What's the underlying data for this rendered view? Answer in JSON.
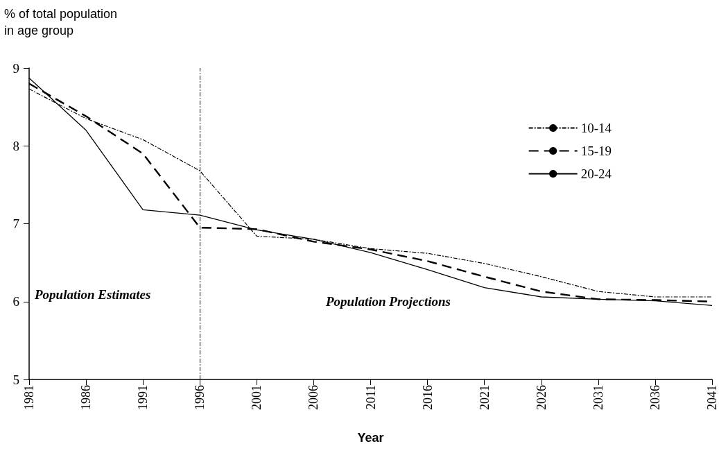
{
  "chart_data": {
    "type": "line",
    "xlabel": "Year",
    "ylabel": "% of total population\nin age group",
    "x": [
      1981,
      1986,
      1991,
      1996,
      2001,
      2006,
      2011,
      2016,
      2021,
      2026,
      2031,
      2036,
      2041
    ],
    "series": [
      {
        "name": "10-14",
        "color": "#000000",
        "line_style": "dotted",
        "values": [
          8.73,
          8.35,
          8.08,
          7.68,
          6.84,
          6.8,
          6.68,
          6.62,
          6.49,
          6.32,
          6.13,
          6.06,
          6.06
        ]
      },
      {
        "name": "15-19",
        "color": "#000000",
        "line_style": "dashed",
        "values": [
          8.8,
          8.38,
          7.9,
          6.95,
          6.93,
          6.77,
          6.67,
          6.52,
          6.32,
          6.13,
          6.03,
          6.02,
          6.0
        ]
      },
      {
        "name": "20-24",
        "color": "#000000",
        "line_style": "solid",
        "values": [
          8.87,
          8.2,
          7.18,
          7.11,
          6.92,
          6.8,
          6.63,
          6.41,
          6.18,
          6.06,
          6.03,
          6.01,
          5.95
        ]
      }
    ],
    "xlim": [
      1981,
      2041
    ],
    "xticks": [
      1981,
      1986,
      1991,
      1996,
      2001,
      2006,
      2011,
      2016,
      2021,
      2026,
      2031,
      2036,
      2041
    ],
    "ylim": [
      5,
      9
    ],
    "yticks": [
      5,
      6,
      7,
      8,
      9
    ],
    "grid": false,
    "legend": "right",
    "marker": "none",
    "ref_lines": [
      {
        "axis": "x",
        "value": 1996,
        "line_style": "dotted",
        "color": "#000000"
      }
    ],
    "annotations": [
      "Population Estimates",
      "Population Projections"
    ]
  }
}
